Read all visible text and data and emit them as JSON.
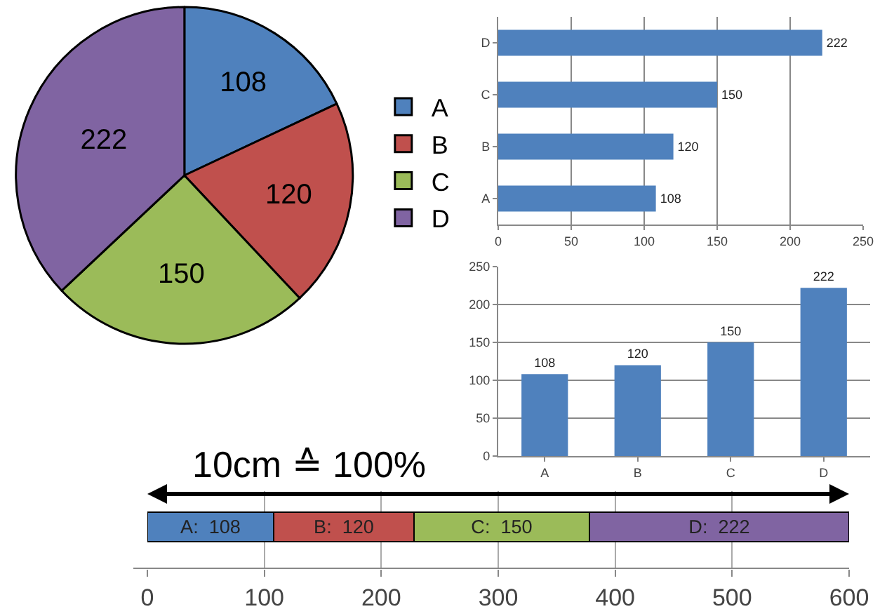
{
  "chart_data": [
    {
      "type": "pie",
      "categories": [
        "A",
        "B",
        "C",
        "D"
      ],
      "values": [
        108,
        120,
        150,
        222
      ],
      "colors": [
        "#4f81bd",
        "#c0504d",
        "#9bbb59",
        "#8064a2"
      ],
      "legend": "right",
      "data_labels": true
    },
    {
      "type": "bar",
      "orientation": "horizontal",
      "categories": [
        "D",
        "C",
        "B",
        "A"
      ],
      "values": [
        222,
        150,
        120,
        108
      ],
      "color": "#4f81bd",
      "xlim": [
        0,
        250
      ],
      "xticks": [
        0,
        50,
        100,
        150,
        200,
        250
      ],
      "grid": "x",
      "data_labels": true
    },
    {
      "type": "bar",
      "categories": [
        "A",
        "B",
        "C",
        "D"
      ],
      "values": [
        108,
        120,
        150,
        222
      ],
      "color": "#4f81bd",
      "ylim": [
        0,
        250
      ],
      "yticks": [
        0,
        50,
        100,
        150,
        200,
        250
      ],
      "grid": "y",
      "data_labels": true
    },
    {
      "type": "bar",
      "orientation": "horizontal",
      "stacked": true,
      "categories": [
        null
      ],
      "series": [
        {
          "color": "#4f81bd",
          "values": [
            108
          ],
          "value_labels": [
            "A:  108"
          ]
        },
        {
          "color": "#c0504d",
          "values": [
            120
          ],
          "value_labels": [
            "B:  120"
          ]
        },
        {
          "color": "#9bbb59",
          "values": [
            150
          ],
          "value_labels": [
            "C:  150"
          ]
        },
        {
          "color": "#8064a2",
          "values": [
            222
          ],
          "value_labels": [
            "D:  222"
          ]
        }
      ],
      "xlim": [
        0,
        600
      ],
      "xticks": [
        0,
        100,
        200,
        300,
        400,
        500,
        600
      ],
      "grid": "x",
      "tick_labels": "x",
      "annotations": [
        "10cm ≙ 100%"
      ]
    }
  ]
}
